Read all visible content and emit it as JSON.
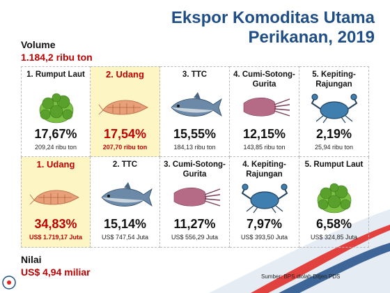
{
  "title_line1": "Ekspor Komoditas Utama",
  "title_line2": "Perikanan, 2019",
  "volume": {
    "label": "Volume",
    "value": "1.184,2 ribu ton"
  },
  "nilai": {
    "label": "Nilai",
    "value": "US$ 4,94 miliar"
  },
  "volume_items": [
    {
      "name": "1. Rumput Laut",
      "pct": "17,67%",
      "sub": "209,24 ribu ton",
      "icon": "seaweed-icon",
      "highlight": false
    },
    {
      "name": "2. Udang",
      "pct": "17,54%",
      "sub": "207,70 ribu ton",
      "icon": "shrimp-icon",
      "highlight": true
    },
    {
      "name": "3. TTC",
      "pct": "15,55%",
      "sub": "184,13 ribu ton",
      "icon": "tuna-icon",
      "highlight": false
    },
    {
      "name": "4. Cumi-Sotong-Gurita",
      "pct": "12,15%",
      "sub": "143,85 ribu ton",
      "icon": "squid-icon",
      "highlight": false
    },
    {
      "name": "5. Kepiting-Rajungan",
      "pct": "2,19%",
      "sub": "25,94 ribu ton",
      "icon": "crab-icon",
      "highlight": false
    }
  ],
  "value_items": [
    {
      "name": "1. Udang",
      "pct": "34,83%",
      "sub": "US$ 1.719,17 Juta",
      "icon": "shrimp-icon",
      "highlight": true
    },
    {
      "name": "2. TTC",
      "pct": "15,14%",
      "sub": "US$ 747,54 Juta",
      "icon": "tuna-icon",
      "highlight": false
    },
    {
      "name": "3. Cumi-Sotong-Gurita",
      "pct": "11,27%",
      "sub": "US$ 556,29 Juta",
      "icon": "squid-icon",
      "highlight": false
    },
    {
      "name": "4. Kepiting-Rajungan",
      "pct": "7,97%",
      "sub": "US$ 393,50 Juta",
      "icon": "crab-icon",
      "highlight": false
    },
    {
      "name": "5. Rumput Laut",
      "pct": "6,58%",
      "sub": "US$ 324,85 Juta",
      "icon": "seaweed-icon",
      "highlight": false
    }
  ],
  "source": "Sumber:  BPS diolah Ditjen PDS",
  "colors": {
    "title": "#1f4e87",
    "accent": "#c00000",
    "highlight_bg": "#fdf5c4",
    "swoosh_red": "#e0241f",
    "swoosh_blue": "#1f4e87"
  }
}
